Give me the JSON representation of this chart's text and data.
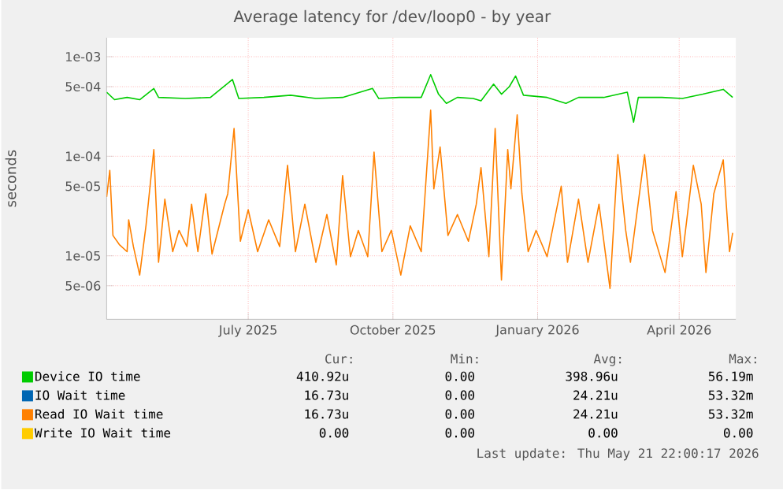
{
  "chart_data": {
    "type": "line",
    "title": "Average latency for /dev/loop0 - by year",
    "ylabel": "seconds",
    "log": "y",
    "grid": true,
    "legend": "bottom",
    "xlim": [
      "2025-04-02",
      "2026-05-07"
    ],
    "xticks": [
      {
        "value": "2025-07-01",
        "label": "July 2025"
      },
      {
        "value": "2025-10-01",
        "label": "October 2025"
      },
      {
        "value": "2026-01-01",
        "label": "January 2026"
      },
      {
        "value": "2026-04-01",
        "label": "April 2026"
      }
    ],
    "ylim": [
      2.3e-06,
      0.00155
    ],
    "yticks": [
      {
        "value": 5e-06,
        "label": "5e-06"
      },
      {
        "value": 1e-05,
        "label": "1e-05"
      },
      {
        "value": 5e-05,
        "label": "5e-05"
      },
      {
        "value": 0.0001,
        "label": "1e-04"
      },
      {
        "value": 0.0005,
        "label": "5e-04"
      },
      {
        "value": 0.001,
        "label": "1e-03"
      }
    ],
    "series": [
      {
        "name": "Device IO time",
        "color": "#00cc00",
        "x": [
          "2025-04-02",
          "2025-04-07",
          "2025-04-15",
          "2025-04-23",
          "2025-05-02",
          "2025-05-05",
          "2025-05-22",
          "2025-06-07",
          "2025-06-21",
          "2025-06-25",
          "2025-07-11",
          "2025-07-28",
          "2025-08-13",
          "2025-08-30",
          "2025-09-18",
          "2025-09-22",
          "2025-10-05",
          "2025-10-19",
          "2025-10-25",
          "2025-10-30",
          "2025-11-04",
          "2025-11-11",
          "2025-11-21",
          "2025-11-26",
          "2025-12-04",
          "2025-12-09",
          "2025-12-14",
          "2025-12-18",
          "2025-12-23",
          "2026-01-07",
          "2026-01-19",
          "2026-01-27",
          "2026-02-12",
          "2026-02-27",
          "2026-03-03",
          "2026-03-06",
          "2026-03-21",
          "2026-04-03",
          "2026-04-16",
          "2026-04-29",
          "2026-05-05"
        ],
        "values": [
          0.00044,
          0.00037,
          0.00039,
          0.00037,
          0.00048,
          0.00039,
          0.00038,
          0.00039,
          0.00059,
          0.00038,
          0.00039,
          0.00041,
          0.00038,
          0.00039,
          0.00048,
          0.00038,
          0.00039,
          0.00039,
          0.00066,
          0.00042,
          0.00034,
          0.00039,
          0.00038,
          0.00036,
          0.00053,
          0.00042,
          0.0005,
          0.00064,
          0.00041,
          0.00039,
          0.00034,
          0.00039,
          0.00039,
          0.00044,
          0.00022,
          0.00039,
          0.00039,
          0.00038,
          0.00042,
          0.00047,
          0.00039
        ]
      },
      {
        "name": "IO Wait time",
        "color": "#0066b3"
      },
      {
        "name": "Read IO Wait time",
        "color": "#ff8000",
        "x": [
          "2025-04-02",
          "2025-04-04",
          "2025-04-06",
          "2025-04-10",
          "2025-04-15",
          "2025-04-16",
          "2025-04-19",
          "2025-04-23",
          "2025-04-27",
          "2025-05-02",
          "2025-05-05",
          "2025-05-09",
          "2025-05-14",
          "2025-05-18",
          "2025-05-23",
          "2025-05-26",
          "2025-05-30",
          "2025-06-04",
          "2025-06-08",
          "2025-06-16",
          "2025-06-18",
          "2025-06-22",
          "2025-06-26",
          "2025-07-01",
          "2025-07-07",
          "2025-07-14",
          "2025-07-21",
          "2025-07-26",
          "2025-07-31",
          "2025-08-06",
          "2025-08-13",
          "2025-08-20",
          "2025-08-26",
          "2025-08-30",
          "2025-09-04",
          "2025-09-09",
          "2025-09-15",
          "2025-09-19",
          "2025-09-24",
          "2025-09-30",
          "2025-10-06",
          "2025-10-12",
          "2025-10-19",
          "2025-10-25",
          "2025-10-27",
          "2025-10-31",
          "2025-11-05",
          "2025-11-11",
          "2025-11-18",
          "2025-11-23",
          "2025-11-26",
          "2025-12-01",
          "2025-12-05",
          "2025-12-09",
          "2025-12-13",
          "2025-12-15",
          "2025-12-19",
          "2025-12-22",
          "2025-12-26",
          "2025-12-31",
          "2026-01-07",
          "2026-01-16",
          "2026-01-20",
          "2026-01-27",
          "2026-02-02",
          "2026-02-09",
          "2026-02-16",
          "2026-02-21",
          "2026-02-26",
          "2026-03-01",
          "2026-03-10",
          "2026-03-15",
          "2026-03-23",
          "2026-03-30",
          "2026-04-03",
          "2026-04-10",
          "2026-04-15",
          "2026-04-18",
          "2026-04-23",
          "2026-04-29",
          "2026-05-03",
          "2026-05-05"
        ],
        "values": [
          3.9e-05,
          7.2e-05,
          1.6e-05,
          1.3e-05,
          1.1e-05,
          2.3e-05,
          1.24e-05,
          6.4e-06,
          2e-05,
          0.000117,
          8.6e-06,
          3.7e-05,
          1.1e-05,
          1.8e-05,
          1.24e-05,
          3.3e-05,
          1.1e-05,
          4.2e-05,
          1.04e-05,
          3.3e-05,
          4.2e-05,
          0.00019,
          1.4e-05,
          2.9e-05,
          1.1e-05,
          2.3e-05,
          1.24e-05,
          8.1e-05,
          1.1e-05,
          3.3e-05,
          8.6e-06,
          2.6e-05,
          8.1e-06,
          6.4e-05,
          9.8e-06,
          1.8e-05,
          9.8e-06,
          0.00011,
          1.1e-05,
          1.8e-05,
          6.4e-06,
          2e-05,
          1.1e-05,
          0.00029,
          4.7e-05,
          0.000124,
          1.6e-05,
          2.6e-05,
          1.4e-05,
          3.3e-05,
          7.7e-05,
          9.8e-06,
          0.00019,
          5.7e-06,
          0.000117,
          4.7e-05,
          0.00026,
          4.2e-05,
          1.1e-05,
          1.8e-05,
          9.8e-06,
          5e-05,
          8.6e-06,
          3.7e-05,
          8.6e-06,
          3.3e-05,
          4.7e-06,
          0.000104,
          1.8e-05,
          8.6e-06,
          0.000104,
          1.8e-05,
          6.8e-06,
          4.4e-05,
          9.8e-06,
          8.1e-05,
          3.3e-05,
          6.8e-06,
          4.2e-05,
          9.2e-05,
          1.1e-05,
          1.7e-05
        ]
      },
      {
        "name": "Write IO Wait time",
        "color": "#ffcc00"
      }
    ],
    "annotations": [
      "Cur:",
      "Min:",
      "Avg:",
      "Max:",
      "410.92u",
      "0.00",
      "398.96u",
      "56.19m",
      "16.73u",
      "0.00",
      "24.21u",
      "53.32m",
      "16.73u",
      "0.00",
      "24.21u",
      "53.32m",
      "0.00",
      "0.00",
      "0.00",
      "0.00",
      "Last update: Thu May 21 22:00:17 2026"
    ]
  }
}
